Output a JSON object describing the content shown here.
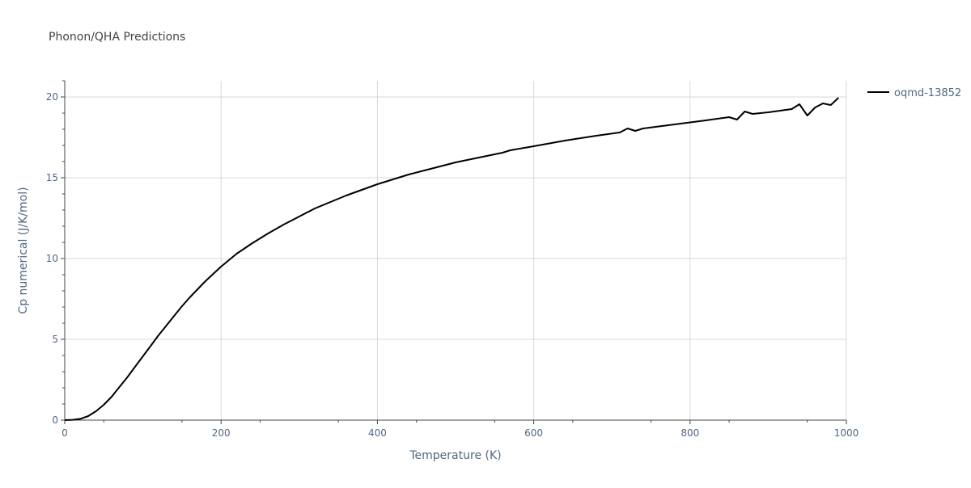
{
  "chart_data": {
    "type": "line",
    "title": "Phonon/QHA Predictions",
    "xlabel": "Temperature (K)",
    "ylabel": "Cp numerical (J/K/mol)",
    "xlim": [
      0,
      1000
    ],
    "ylim": [
      0,
      21
    ],
    "x_ticks": [
      0,
      200,
      400,
      600,
      800,
      1000
    ],
    "y_ticks": [
      0,
      5,
      10,
      15,
      20
    ],
    "grid": true,
    "legend_position": "top-right",
    "colors": {
      "line": "#000000",
      "grid": "#d9d9d9",
      "axis": "#444444",
      "text": "#506784"
    },
    "series": [
      {
        "name": "oqmd-13852",
        "x": [
          0,
          10,
          20,
          30,
          40,
          50,
          60,
          70,
          80,
          90,
          100,
          110,
          120,
          130,
          140,
          150,
          160,
          170,
          180,
          190,
          200,
          220,
          240,
          260,
          280,
          300,
          320,
          340,
          360,
          380,
          400,
          420,
          440,
          460,
          480,
          500,
          520,
          540,
          560,
          570,
          600,
          640,
          680,
          710,
          720,
          730,
          740,
          780,
          820,
          850,
          860,
          870,
          880,
          900,
          930,
          940,
          950,
          960,
          970,
          980,
          990
        ],
        "y": [
          0,
          0.02,
          0.08,
          0.25,
          0.55,
          0.95,
          1.45,
          2.05,
          2.65,
          3.3,
          3.95,
          4.6,
          5.25,
          5.85,
          6.45,
          7.05,
          7.6,
          8.1,
          8.6,
          9.05,
          9.5,
          10.3,
          10.95,
          11.55,
          12.1,
          12.6,
          13.1,
          13.5,
          13.9,
          14.25,
          14.6,
          14.9,
          15.2,
          15.45,
          15.7,
          15.95,
          16.15,
          16.35,
          16.55,
          16.7,
          16.95,
          17.3,
          17.6,
          17.8,
          18.05,
          17.9,
          18.05,
          18.3,
          18.55,
          18.75,
          18.6,
          19.1,
          18.95,
          19.05,
          19.25,
          19.55,
          18.85,
          19.35,
          19.6,
          19.5,
          19.95
        ]
      }
    ]
  }
}
